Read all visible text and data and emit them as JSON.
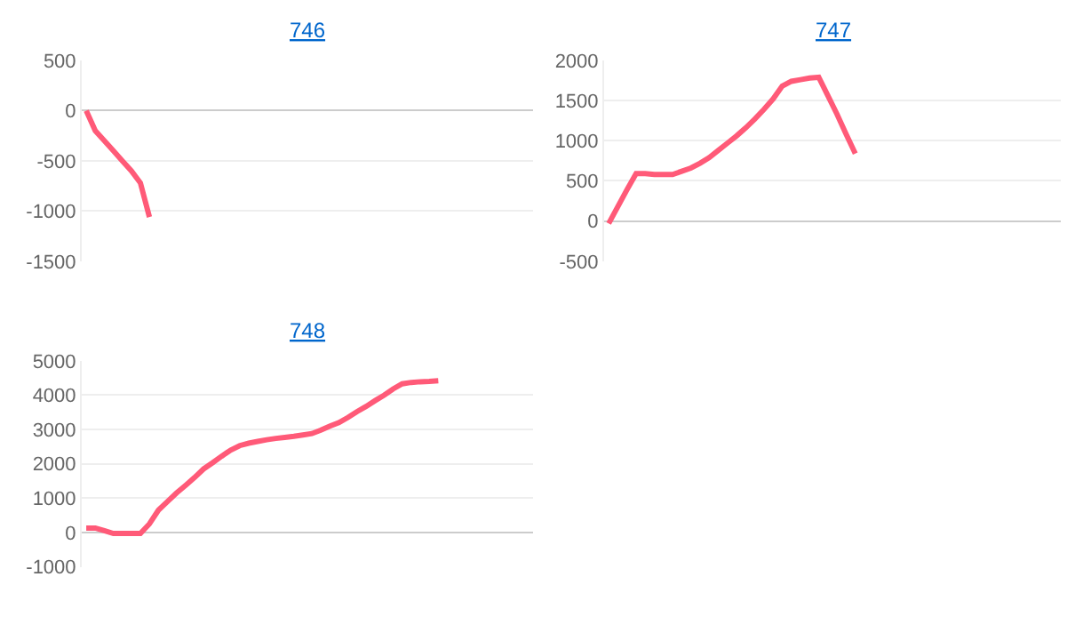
{
  "chart_data": [
    {
      "type": "line",
      "title": "746",
      "categories": [
        null,
        null,
        null,
        null,
        null,
        null,
        null,
        null,
        null,
        null,
        null,
        null,
        null,
        null,
        null,
        null,
        null,
        null,
        null,
        null,
        null,
        null,
        null,
        null,
        null,
        null,
        null,
        null,
        null,
        null,
        null,
        null,
        null,
        null,
        null,
        null,
        null,
        null,
        null,
        null,
        null,
        null,
        null,
        null,
        null,
        null,
        null,
        null,
        null,
        null
      ],
      "series": [
        {
          "color": "#ff5a78",
          "values": [
            0,
            -200,
            -300,
            -400,
            -500,
            -600,
            -720,
            -1060,
            null,
            null,
            null,
            null,
            null,
            null,
            null,
            null,
            null,
            null,
            null,
            null,
            null,
            null,
            null,
            null,
            null,
            null,
            null,
            null,
            null,
            null,
            null,
            null,
            null,
            null,
            null,
            null,
            null,
            null,
            null,
            null,
            null,
            null,
            null,
            null,
            null,
            null,
            null,
            null,
            null,
            null
          ]
        }
      ],
      "ylim": [
        -1500,
        500
      ],
      "yticks": [
        -1500,
        -1000,
        -500,
        0,
        500
      ],
      "grid": "y",
      "tick_labels": "y",
      "marker": "none",
      "line_style": "solid"
    },
    {
      "type": "line",
      "title": "747",
      "categories": [
        null,
        null,
        null,
        null,
        null,
        null,
        null,
        null,
        null,
        null,
        null,
        null,
        null,
        null,
        null,
        null,
        null,
        null,
        null,
        null,
        null,
        null,
        null,
        null,
        null,
        null,
        null,
        null,
        null,
        null,
        null,
        null,
        null,
        null,
        null,
        null,
        null,
        null,
        null,
        null,
        null,
        null,
        null,
        null,
        null,
        null,
        null,
        null,
        null,
        null
      ],
      "series": [
        {
          "color": "#ff5a78",
          "values": [
            -30,
            180,
            390,
            590,
            590,
            580,
            580,
            580,
            620,
            660,
            720,
            790,
            880,
            970,
            1060,
            1160,
            1270,
            1390,
            1520,
            1680,
            1740,
            1760,
            1780,
            1790,
            1560,
            1330,
            1080,
            840,
            null,
            null,
            null,
            null,
            null,
            null,
            null,
            null,
            null,
            null,
            null,
            null,
            null,
            null,
            null,
            null,
            null,
            null,
            null,
            null,
            null,
            null
          ]
        }
      ],
      "ylim": [
        -500,
        2000
      ],
      "yticks": [
        -500,
        0,
        500,
        1000,
        1500,
        2000
      ],
      "grid": "y",
      "tick_labels": "y",
      "marker": "none",
      "line_style": "solid"
    },
    {
      "type": "line",
      "title": "748",
      "categories": [
        null,
        null,
        null,
        null,
        null,
        null,
        null,
        null,
        null,
        null,
        null,
        null,
        null,
        null,
        null,
        null,
        null,
        null,
        null,
        null,
        null,
        null,
        null,
        null,
        null,
        null,
        null,
        null,
        null,
        null,
        null,
        null,
        null,
        null,
        null,
        null,
        null,
        null,
        null,
        null,
        null,
        null,
        null,
        null,
        null,
        null,
        null,
        null,
        null,
        null
      ],
      "series": [
        {
          "color": "#ff5a78",
          "values": [
            130,
            130,
            50,
            -30,
            -30,
            -30,
            -30,
            250,
            650,
            900,
            1150,
            1370,
            1600,
            1850,
            2030,
            2220,
            2400,
            2530,
            2600,
            2650,
            2700,
            2740,
            2770,
            2800,
            2840,
            2880,
            2980,
            3100,
            3200,
            3350,
            3520,
            3670,
            3840,
            4000,
            4180,
            4330,
            4370,
            4390,
            4400,
            4420,
            null,
            null,
            null,
            null,
            null,
            null,
            null,
            null,
            null,
            null
          ]
        }
      ],
      "ylim": [
        -1000,
        5000
      ],
      "yticks": [
        -1000,
        0,
        1000,
        2000,
        3000,
        4000,
        5000
      ],
      "grid": "y",
      "tick_labels": "y",
      "marker": "none",
      "line_style": "solid"
    }
  ]
}
